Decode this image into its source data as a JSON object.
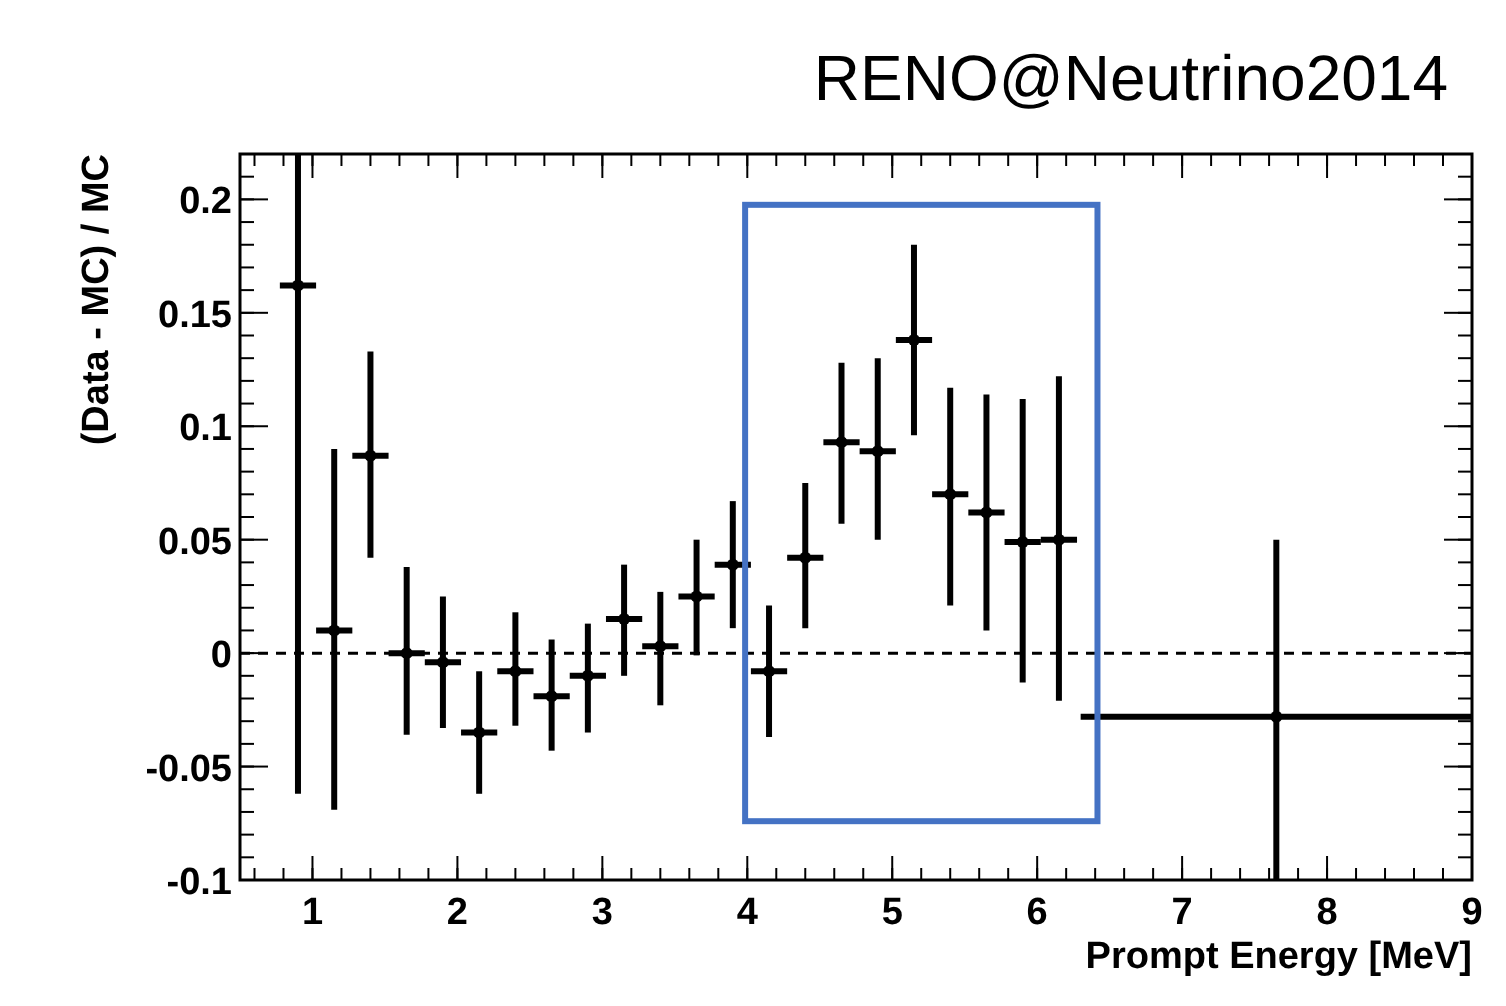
{
  "chart_data": {
    "type": "scatter",
    "title": "RENO@Neutrino2014",
    "xlabel": "Prompt Energy [MeV]",
    "ylabel": "(Data - MC) / MC",
    "x": [
      0.9,
      1.15,
      1.4,
      1.65,
      1.9,
      2.15,
      2.4,
      2.65,
      2.9,
      3.15,
      3.4,
      3.65,
      3.9,
      4.15,
      4.4,
      4.65,
      4.9,
      5.15,
      5.4,
      5.65,
      5.9,
      6.15,
      7.65
    ],
    "series": [
      {
        "color": "#000000",
        "values": [
          0.162,
          0.01,
          0.087,
          0,
          -0.004,
          -0.035,
          -0.008,
          -0.019,
          -0.01,
          0.015,
          0.003,
          0.025,
          0.039,
          -0.008,
          0.042,
          0.093,
          0.089,
          0.138,
          0.07,
          0.062,
          0.049,
          0.05,
          -0.028
        ],
        "errors": [
          [
            -0.062,
            0.22
          ],
          [
            -0.069,
            0.09
          ],
          [
            0.042,
            0.133
          ],
          [
            -0.036,
            0.038
          ],
          [
            -0.033,
            0.025
          ],
          [
            -0.062,
            -0.008
          ],
          [
            -0.032,
            0.018
          ],
          [
            -0.043,
            0.006
          ],
          [
            -0.035,
            0.013
          ],
          [
            -0.01,
            0.039
          ],
          [
            -0.023,
            0.027
          ],
          [
            -0.001,
            0.05
          ],
          [
            0.011,
            0.067
          ],
          [
            -0.037,
            0.021
          ],
          [
            0.011,
            0.075
          ],
          [
            0.057,
            0.128
          ],
          [
            0.05,
            0.13
          ],
          [
            0.096,
            0.18
          ],
          [
            0.021,
            0.117
          ],
          [
            0.01,
            0.114
          ],
          [
            -0.013,
            0.112
          ],
          [
            -0.021,
            0.122
          ],
          [
            -0.1,
            0.05
          ]
        ],
        "xerrors": [
          0.125,
          0.125,
          0.125,
          0.125,
          0.125,
          0.125,
          0.125,
          0.125,
          0.125,
          0.125,
          0.125,
          0.125,
          0.125,
          0.125,
          0.125,
          0.125,
          0.125,
          0.125,
          0.125,
          0.125,
          0.125,
          0.125,
          [
            6.3,
            9
          ]
        ]
      }
    ],
    "xlim": [
      0.5,
      9
    ],
    "xticks": [
      1,
      2,
      3,
      4,
      5,
      6,
      7,
      8,
      9
    ],
    "ylim": [
      -0.1,
      0.22
    ],
    "yticks": [
      -0.1,
      -0.05,
      0,
      0.05,
      0.1,
      0.15,
      0.2
    ],
    "ref_lines": [
      {
        "axis": "y",
        "value": 0,
        "line_style": "dashed",
        "color": "#000000"
      }
    ],
    "marker": "circle",
    "grid": false
  }
}
